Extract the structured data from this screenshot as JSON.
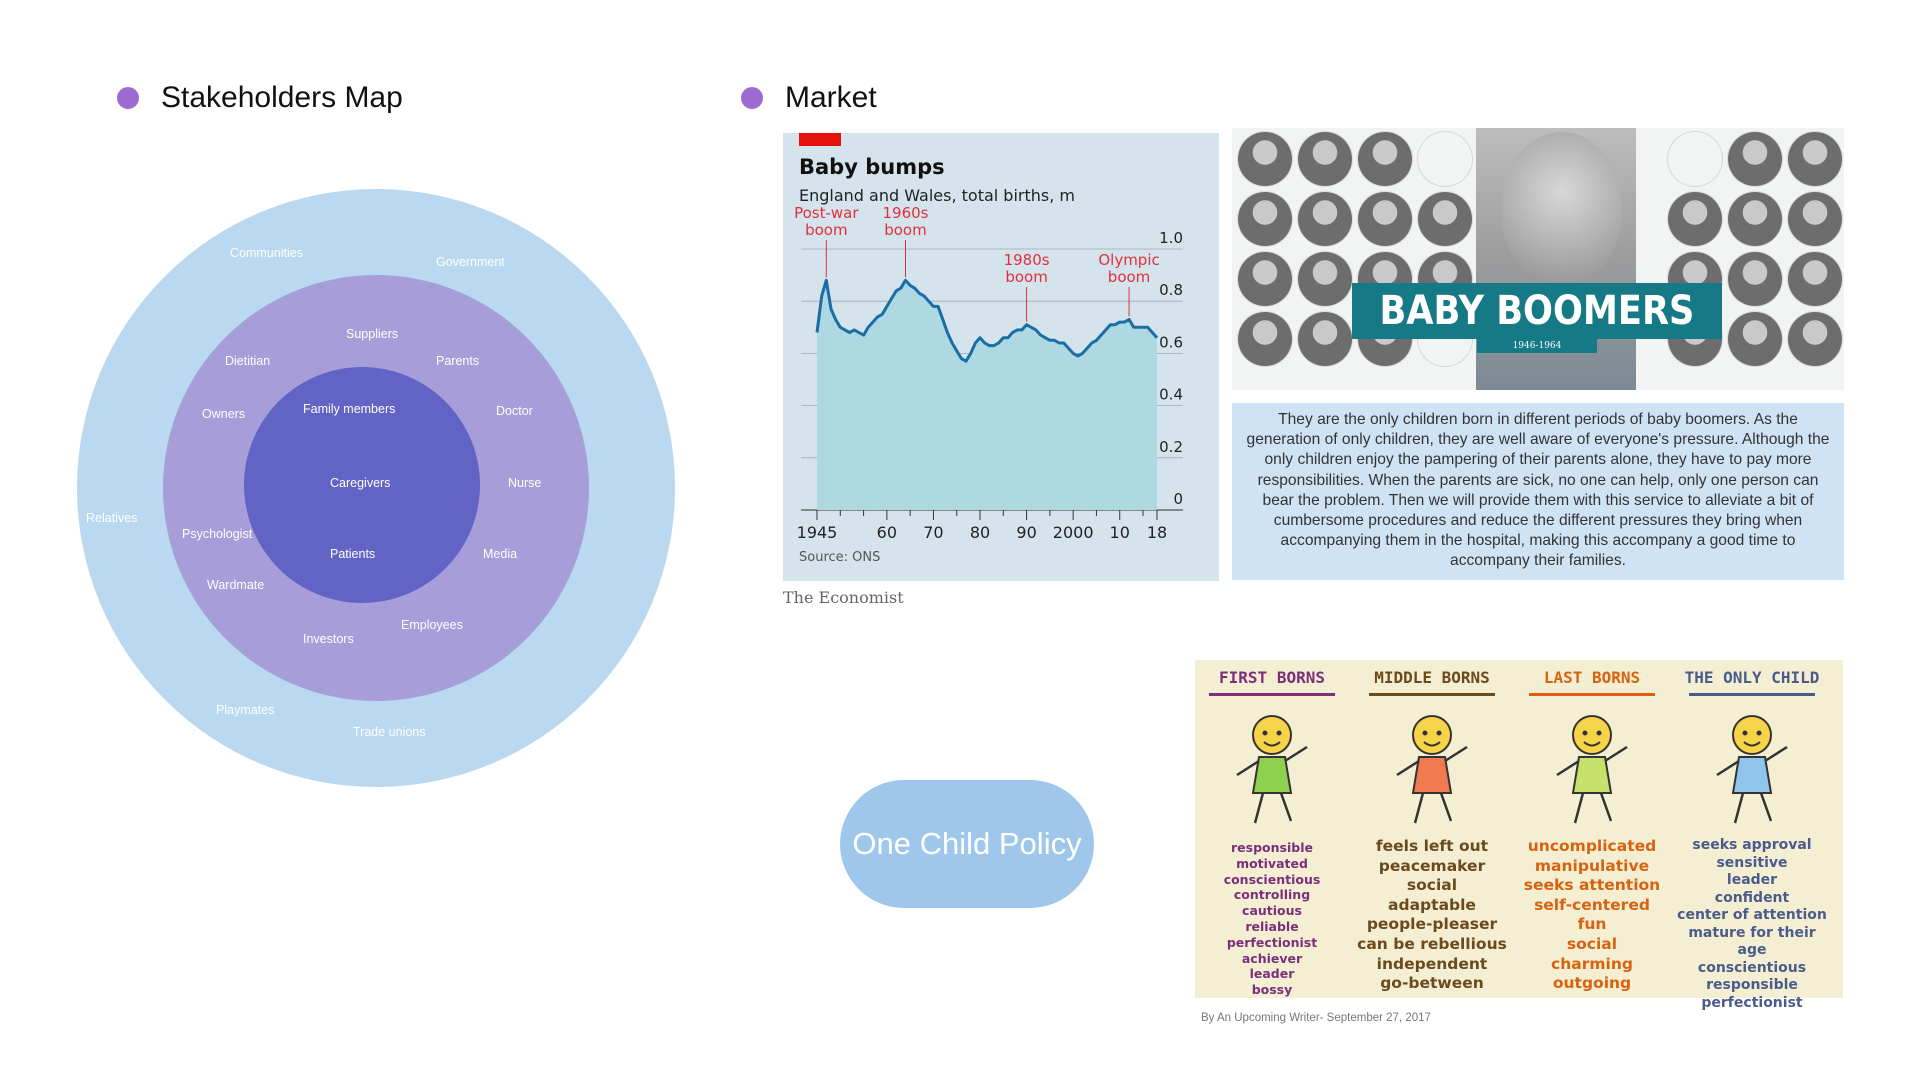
{
  "accent_color": "#9b6bd0",
  "stakeholders": {
    "title": "Stakeholders Map",
    "ring_colors": {
      "outer": "#bad8ef",
      "middle": "#a79ed9",
      "inner": "#6164c5"
    },
    "outer_labels": [
      "Communities",
      "Government",
      "Relatives",
      "Playmates",
      "Trade unions"
    ],
    "middle_labels": [
      "Suppliers",
      "Dietitian",
      "Parents",
      "Owners",
      "Doctor",
      "Nurse",
      "Psychologist",
      "Media",
      "Wardmate",
      "Employees",
      "Investors"
    ],
    "inner_labels": [
      "Family members",
      "Caregivers",
      "Patients"
    ]
  },
  "market": {
    "title": "Market",
    "chart_title": "Baby bumps",
    "chart_subtitle": "England and Wales, total births, m",
    "source": "Source: ONS",
    "credit": "The Economist",
    "annotations": [
      {
        "line1": "Post-war",
        "line2": "boom",
        "year": 1947
      },
      {
        "line1": "1960s",
        "line2": "boom",
        "year": 1964
      },
      {
        "line1": "1980s",
        "line2": "boom",
        "year": 1990
      },
      {
        "line1": "Olympic",
        "line2": "boom",
        "year": 2012
      }
    ],
    "boomers_title": "BABY BOOMERS",
    "boomers_years": "1946-1964",
    "description": "They are the only children born in different periods of baby boomers. As the generation of only children, they are well aware of everyone's pressure. Although the only children enjoy the pampering of their parents alone, they have to pay more responsibilities. When the parents are sick, no one can help, only one person can bear the problem. Then we will provide them with this service to alleviate a bit of cumbersome procedures and reduce the different pressures they bring when accompanying them in the hospital, making this accompany a good time to accompany their families."
  },
  "chart_data": {
    "type": "area",
    "title": "Baby bumps",
    "subtitle": "England and Wales, total births, m",
    "xlabel": "",
    "ylabel": "",
    "x": [
      1945,
      1946,
      1947,
      1948,
      1949,
      1950,
      1951,
      1952,
      1953,
      1954,
      1955,
      1956,
      1957,
      1958,
      1959,
      1960,
      1961,
      1962,
      1963,
      1964,
      1965,
      1966,
      1967,
      1968,
      1969,
      1970,
      1971,
      1972,
      1973,
      1974,
      1975,
      1976,
      1977,
      1978,
      1979,
      1980,
      1981,
      1982,
      1983,
      1984,
      1985,
      1986,
      1987,
      1988,
      1989,
      1990,
      1991,
      1992,
      1993,
      1994,
      1995,
      1996,
      1997,
      1998,
      1999,
      2000,
      2001,
      2002,
      2003,
      2004,
      2005,
      2006,
      2007,
      2008,
      2009,
      2010,
      2011,
      2012,
      2013,
      2014,
      2015,
      2016,
      2017,
      2018
    ],
    "values": [
      0.68,
      0.82,
      0.88,
      0.77,
      0.73,
      0.7,
      0.69,
      0.68,
      0.69,
      0.68,
      0.67,
      0.7,
      0.72,
      0.74,
      0.75,
      0.78,
      0.81,
      0.84,
      0.85,
      0.88,
      0.86,
      0.85,
      0.83,
      0.82,
      0.8,
      0.78,
      0.78,
      0.73,
      0.68,
      0.64,
      0.61,
      0.58,
      0.57,
      0.6,
      0.64,
      0.66,
      0.64,
      0.63,
      0.63,
      0.64,
      0.66,
      0.66,
      0.68,
      0.69,
      0.69,
      0.71,
      0.7,
      0.69,
      0.67,
      0.66,
      0.65,
      0.65,
      0.64,
      0.64,
      0.62,
      0.6,
      0.59,
      0.6,
      0.62,
      0.64,
      0.65,
      0.67,
      0.69,
      0.71,
      0.71,
      0.72,
      0.72,
      0.73,
      0.7,
      0.7,
      0.7,
      0.7,
      0.68,
      0.66
    ],
    "xticks": [
      1945,
      1960,
      1970,
      1980,
      1990,
      2000,
      2010,
      2018
    ],
    "xtick_labels": [
      "1945",
      "60",
      "70",
      "80",
      "90",
      "2000",
      "10",
      "18"
    ],
    "yticks": [
      0,
      0.2,
      0.4,
      0.6,
      0.8,
      1.0
    ],
    "ytick_labels": [
      "0",
      "0.2",
      "0.4",
      "0.6",
      "0.8",
      "1.0"
    ],
    "xlim": [
      1945,
      2018
    ],
    "ylim": [
      0,
      1.0
    ],
    "grid": true,
    "line_color": "#1a6ea5",
    "fill_color": "#aed8e2",
    "annotation_color": "#e0303d"
  },
  "policy_label": "One Child Policy",
  "birth_order": {
    "columns": [
      {
        "title": "FIRST BORNS",
        "color": "#7b2f7b",
        "traits": [
          "responsible",
          "motivated",
          "conscientious",
          "controlling",
          "cautious",
          "reliable",
          "perfectionist",
          "achiever",
          "leader",
          "bossy"
        ]
      },
      {
        "title": "MIDDLE BORNS",
        "color": "#6b4a1e",
        "traits": [
          "feels left out",
          "peacemaker",
          "social",
          "adaptable",
          "people-pleaser",
          "can be rebellious",
          "independent",
          "go-between"
        ]
      },
      {
        "title": "LAST BORNS",
        "color": "#d9620e",
        "traits": [
          "uncomplicated",
          "manipulative",
          "seeks attention",
          "self-centered",
          "fun",
          "social",
          "charming",
          "outgoing"
        ]
      },
      {
        "title": "THE ONLY CHILD",
        "color": "#4b5b8c",
        "traits": [
          "seeks approval",
          "sensitive",
          "leader",
          "confident",
          "center of attention",
          "mature for their age",
          "conscientious",
          "responsible",
          "perfectionist"
        ]
      }
    ],
    "byline": "By An Upcoming Writer- September 27, 2017"
  }
}
